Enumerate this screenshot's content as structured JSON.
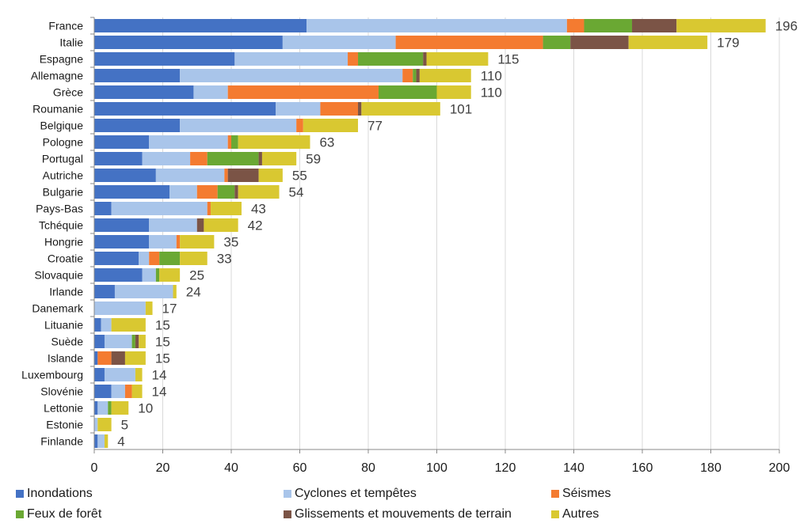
{
  "chart_data": {
    "type": "bar",
    "orientation": "horizontal",
    "stacked": true,
    "title": "",
    "xlabel": "",
    "ylabel": "",
    "xlim": [
      0,
      200
    ],
    "x_ticks": [
      0,
      20,
      40,
      60,
      80,
      100,
      120,
      140,
      160,
      180,
      200
    ],
    "grid": "vertical",
    "legend_position": "bottom",
    "categories": [
      "France",
      "Italie",
      "Espagne",
      "Allemagne",
      "Grèce",
      "Roumanie",
      "Belgique",
      "Pologne",
      "Portugal",
      "Autriche",
      "Bulgarie",
      "Pays-Bas",
      "Tchéquie",
      "Hongrie",
      "Croatie",
      "Slovaquie",
      "Irlande",
      "Danemark",
      "Lituanie",
      "Suède",
      "Islande",
      "Luxembourg",
      "Slovénie",
      "Lettonie",
      "Estonie",
      "Finlande"
    ],
    "totals": [
      196,
      179,
      115,
      110,
      110,
      101,
      77,
      63,
      59,
      55,
      54,
      43,
      42,
      35,
      33,
      25,
      24,
      17,
      15,
      15,
      15,
      14,
      14,
      10,
      5,
      4
    ],
    "series": [
      {
        "name": "Inondations",
        "color": "#4472c4",
        "values": [
          62,
          55,
          41,
          25,
          29,
          53,
          25,
          16,
          14,
          18,
          22,
          5,
          16,
          16,
          13,
          14,
          6,
          0,
          2,
          3,
          1,
          3,
          5,
          1,
          0,
          1
        ]
      },
      {
        "name": "Cyclones et tempêtes",
        "color": "#a9c5ea",
        "values": [
          76,
          33,
          33,
          65,
          10,
          13,
          34,
          23,
          14,
          20,
          8,
          28,
          14,
          8,
          3,
          4,
          17,
          15,
          3,
          8,
          0,
          9,
          4,
          3,
          1,
          2
        ]
      },
      {
        "name": "Séismes",
        "color": "#f47b30",
        "values": [
          5,
          43,
          3,
          3,
          44,
          11,
          2,
          1,
          5,
          1,
          6,
          1,
          0,
          1,
          3,
          0,
          0,
          0,
          0,
          0,
          4,
          0,
          2,
          0,
          0,
          0
        ]
      },
      {
        "name": "Feux de forêt",
        "color": "#6aa833",
        "values": [
          14,
          8,
          19,
          1,
          17,
          0,
          0,
          2,
          15,
          0,
          5,
          0,
          0,
          0,
          6,
          1,
          0,
          0,
          0,
          1,
          0,
          0,
          0,
          1,
          0,
          0
        ]
      },
      {
        "name": "Glissements et mouvements de terrain",
        "color": "#7b5446",
        "values": [
          13,
          17,
          1,
          1,
          0,
          1,
          0,
          0,
          1,
          9,
          1,
          0,
          2,
          0,
          0,
          0,
          0,
          0,
          0,
          1,
          4,
          0,
          0,
          0,
          0,
          0
        ]
      },
      {
        "name": "Autres",
        "color": "#d9c831",
        "values": [
          26,
          23,
          18,
          15,
          10,
          23,
          16,
          21,
          10,
          7,
          12,
          9,
          10,
          10,
          8,
          6,
          1,
          2,
          10,
          2,
          6,
          2,
          3,
          5,
          4,
          1
        ]
      }
    ]
  }
}
